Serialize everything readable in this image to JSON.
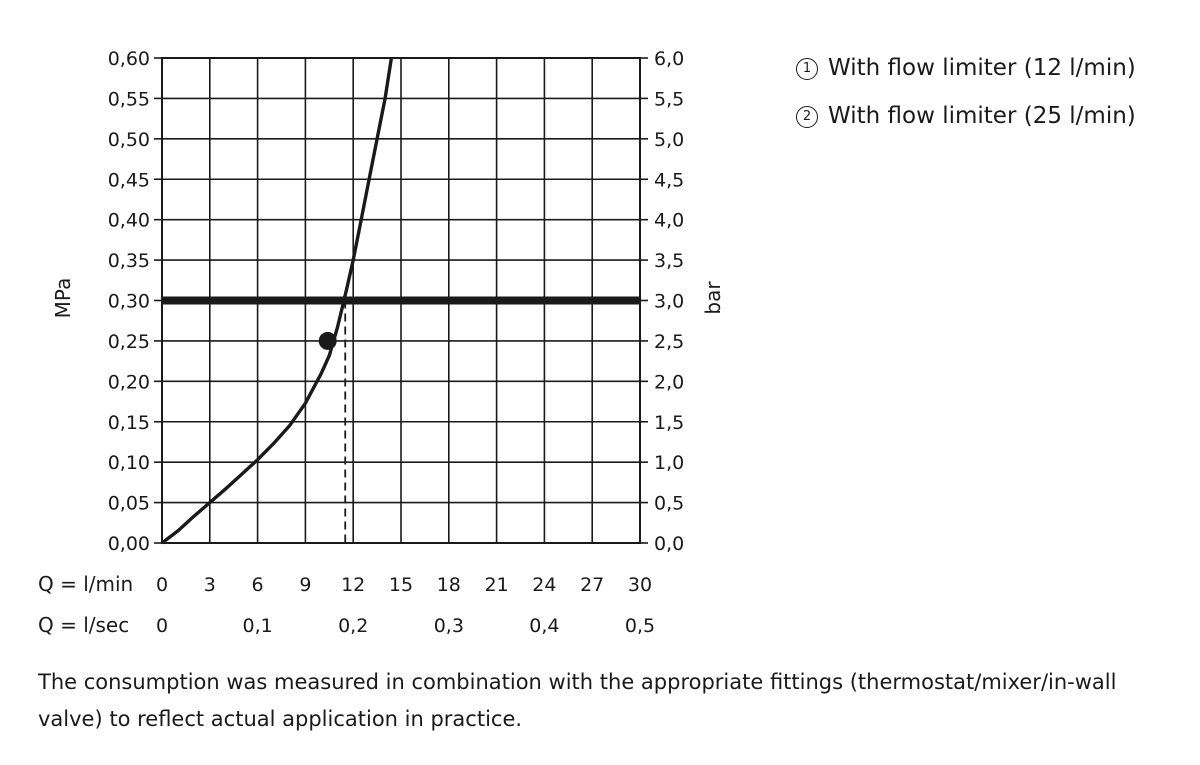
{
  "chart_data": {
    "type": "line",
    "xlabel": "Q = l/min",
    "x2label": "Q = l/sec",
    "ylabel": "MPa",
    "y2label": "bar",
    "xlim": [
      0,
      30
    ],
    "ylim": [
      0,
      0.6
    ],
    "grid": true,
    "x_ticks": [
      "0",
      "3",
      "6",
      "9",
      "12",
      "15",
      "18",
      "21",
      "24",
      "27",
      "30"
    ],
    "x2_ticks": [
      {
        "x": 0,
        "label": "0"
      },
      {
        "x": 6,
        "label": "0,1"
      },
      {
        "x": 12,
        "label": "0,2"
      },
      {
        "x": 18,
        "label": "0,3"
      },
      {
        "x": 24,
        "label": "0,4"
      },
      {
        "x": 30,
        "label": "0,5"
      }
    ],
    "y_ticks": [
      "0,00",
      "0,05",
      "0,10",
      "0,15",
      "0,20",
      "0,25",
      "0,30",
      "0,35",
      "0,40",
      "0,45",
      "0,50",
      "0,55",
      "0,60"
    ],
    "y2_ticks": [
      "0,0",
      "0,5",
      "1,0",
      "1,5",
      "2,0",
      "2,5",
      "3,0",
      "3,5",
      "4,0",
      "4,5",
      "5,0",
      "5,5",
      "6,0"
    ],
    "series": [
      {
        "points": [
          [
            0,
            0
          ],
          [
            1,
            0.015
          ],
          [
            2,
            0.033
          ],
          [
            3,
            0.05
          ],
          [
            4,
            0.067
          ],
          [
            5,
            0.085
          ],
          [
            6,
            0.103
          ],
          [
            7,
            0.123
          ],
          [
            8,
            0.145
          ],
          [
            9,
            0.173
          ],
          [
            10,
            0.21
          ],
          [
            10.5,
            0.232
          ],
          [
            11,
            0.266
          ],
          [
            11.3,
            0.29
          ],
          [
            11.6,
            0.315
          ],
          [
            12,
            0.35
          ],
          [
            12.5,
            0.4
          ],
          [
            13,
            0.45
          ],
          [
            13.5,
            0.5
          ],
          [
            14,
            0.55
          ],
          [
            14.4,
            0.6
          ]
        ]
      }
    ],
    "reference_line": {
      "y": 0.3
    },
    "marker": {
      "x": 10.4,
      "y": 0.25
    },
    "dashed_drop": {
      "x": 11.5,
      "y_from": 0.3,
      "y_to": 0
    }
  },
  "legend": [
    {
      "num": "1",
      "label": "With flow limiter (12 l/min)"
    },
    {
      "num": "2",
      "label": "With flow limiter (25 l/min)"
    }
  ],
  "footnote": "The consumption was measured in combination with the appropriate fittings (thermostat/mixer/in-wall valve) to reflect actual application in practice."
}
